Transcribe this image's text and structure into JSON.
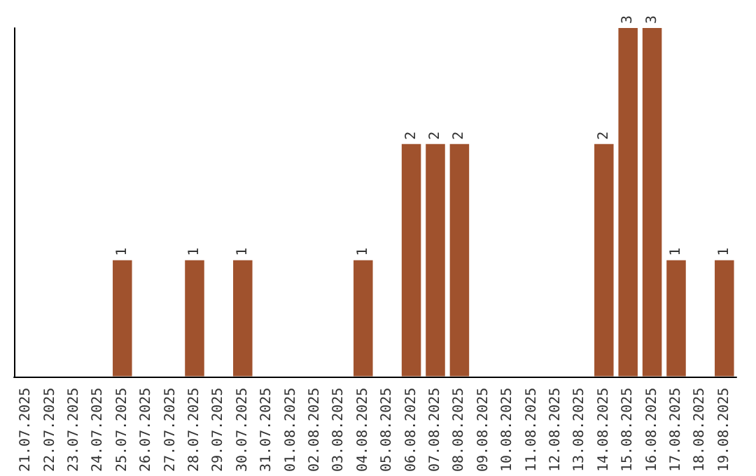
{
  "chart_data": {
    "type": "bar",
    "categories": [
      "21.07.2025",
      "22.07.2025",
      "23.07.2025",
      "24.07.2025",
      "25.07.2025",
      "26.07.2025",
      "27.07.2025",
      "28.07.2025",
      "29.07.2025",
      "30.07.2025",
      "31.07.2025",
      "01.08.2025",
      "02.08.2025",
      "03.08.2025",
      "04.08.2025",
      "05.08.2025",
      "06.08.2025",
      "07.08.2025",
      "08.08.2025",
      "09.08.2025",
      "10.08.2025",
      "11.08.2025",
      "12.08.2025",
      "13.08.2025",
      "14.08.2025",
      "15.08.2025",
      "16.08.2025",
      "17.08.2025",
      "18.08.2025",
      "19.08.2025"
    ],
    "values": [
      0,
      0,
      0,
      0,
      1,
      0,
      0,
      1,
      0,
      1,
      0,
      0,
      0,
      0,
      1,
      0,
      2,
      2,
      2,
      0,
      0,
      0,
      0,
      0,
      2,
      3,
      3,
      1,
      0,
      1
    ],
    "value_labels": [
      null,
      null,
      null,
      null,
      "1",
      null,
      null,
      "1",
      null,
      "1",
      null,
      null,
      null,
      null,
      "1",
      null,
      "2",
      "2",
      "2",
      null,
      null,
      null,
      null,
      null,
      "2",
      "3",
      "3",
      "1",
      null,
      "1"
    ],
    "color": "#a0522d",
    "tick_labels": "x"
  }
}
